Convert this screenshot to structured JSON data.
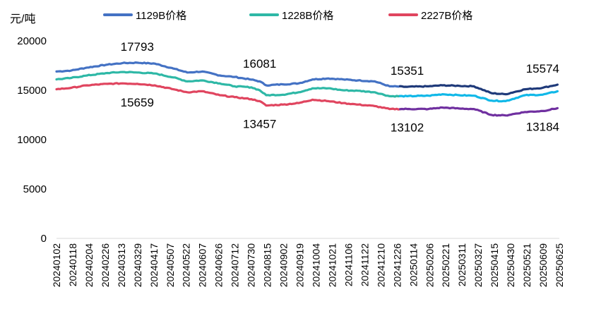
{
  "chart_data": {
    "type": "line",
    "unit_label": "元/吨",
    "ylim": [
      0,
      20000
    ],
    "y_ticks": [
      "0",
      "5000",
      "10000",
      "15000",
      "20000"
    ],
    "x_start": "20240102",
    "x_end": "20250627",
    "x_tick_labels": [
      "20240102",
      "20240118",
      "20240204",
      "20240226",
      "20240313",
      "20240329",
      "20240417",
      "20240507",
      "20240522",
      "20240607",
      "20240626",
      "20240712",
      "20240730",
      "20240815",
      "20240902",
      "20240919",
      "20241004",
      "20241021",
      "20241106",
      "20241122",
      "20241210",
      "20241226",
      "20250114",
      "20250206",
      "20250221",
      "20250311",
      "20250327",
      "20250415",
      "20250430",
      "20250521",
      "20250609",
      "20250625"
    ],
    "legend_position": "top",
    "grid": false,
    "series": [
      {
        "name": "1129B价格",
        "color": "#4472C4",
        "highlight_color": "#1F3A7A",
        "highlight_from": "20250108",
        "points": [
          [
            "20240102",
            16900
          ],
          [
            "20240118",
            17000
          ],
          [
            "20240204",
            17300
          ],
          [
            "20240226",
            17600
          ],
          [
            "20240313",
            17750
          ],
          [
            "20240329",
            17793
          ],
          [
            "20240417",
            17700
          ],
          [
            "20240507",
            17200
          ],
          [
            "20240522",
            16800
          ],
          [
            "20240607",
            16900
          ],
          [
            "20240626",
            16500
          ],
          [
            "20240712",
            16350
          ],
          [
            "20240730",
            16081
          ],
          [
            "20240808",
            15900
          ],
          [
            "20240815",
            15500
          ],
          [
            "20240902",
            15600
          ],
          [
            "20240919",
            15700
          ],
          [
            "20241004",
            16100
          ],
          [
            "20241021",
            16200
          ],
          [
            "20241106",
            16100
          ],
          [
            "20241122",
            16000
          ],
          [
            "20241210",
            15900
          ],
          [
            "20241226",
            15400
          ],
          [
            "20250114",
            15351
          ],
          [
            "20250206",
            15400
          ],
          [
            "20250221",
            15500
          ],
          [
            "20250311",
            15450
          ],
          [
            "20250327",
            15400
          ],
          [
            "20250415",
            14700
          ],
          [
            "20250430",
            14600
          ],
          [
            "20250521",
            15100
          ],
          [
            "20250609",
            15250
          ],
          [
            "20250625",
            15574
          ]
        ]
      },
      {
        "name": "1228B价格",
        "color": "#2EB8A6",
        "highlight_color": "#10B8E8",
        "highlight_from": "20250108",
        "points": [
          [
            "20240102",
            16100
          ],
          [
            "20240118",
            16250
          ],
          [
            "20240204",
            16500
          ],
          [
            "20240226",
            16750
          ],
          [
            "20240313",
            16850
          ],
          [
            "20240329",
            16800
          ],
          [
            "20240417",
            16700
          ],
          [
            "20240507",
            16300
          ],
          [
            "20240522",
            15900
          ],
          [
            "20240607",
            16000
          ],
          [
            "20240626",
            15700
          ],
          [
            "20240712",
            15400
          ],
          [
            "20240730",
            15300
          ],
          [
            "20240808",
            15000
          ],
          [
            "20240815",
            14500
          ],
          [
            "20240902",
            14550
          ],
          [
            "20240919",
            14800
          ],
          [
            "20241004",
            15200
          ],
          [
            "20241021",
            15200
          ],
          [
            "20241106",
            15000
          ],
          [
            "20241122",
            14950
          ],
          [
            "20241210",
            14800
          ],
          [
            "20241226",
            14400
          ],
          [
            "20250114",
            14400
          ],
          [
            "20250206",
            14450
          ],
          [
            "20250221",
            14600
          ],
          [
            "20250311",
            14500
          ],
          [
            "20250327",
            14450
          ],
          [
            "20250415",
            13950
          ],
          [
            "20250430",
            13900
          ],
          [
            "20250521",
            14500
          ],
          [
            "20250609",
            14550
          ],
          [
            "20250625",
            14900
          ]
        ]
      },
      {
        "name": "2227B价格",
        "color": "#E0455F",
        "highlight_color": "#7030A0",
        "highlight_from": "20250108",
        "points": [
          [
            "20240102",
            15100
          ],
          [
            "20240118",
            15250
          ],
          [
            "20240204",
            15500
          ],
          [
            "20240226",
            15650
          ],
          [
            "20240313",
            15700
          ],
          [
            "20240329",
            15659
          ],
          [
            "20240417",
            15500
          ],
          [
            "20240507",
            15100
          ],
          [
            "20240522",
            14800
          ],
          [
            "20240607",
            14900
          ],
          [
            "20240626",
            14500
          ],
          [
            "20240712",
            14300
          ],
          [
            "20240730",
            14100
          ],
          [
            "20240808",
            13900
          ],
          [
            "20240815",
            13457
          ],
          [
            "20240902",
            13550
          ],
          [
            "20240919",
            13700
          ],
          [
            "20241004",
            14050
          ],
          [
            "20241021",
            13900
          ],
          [
            "20241106",
            13700
          ],
          [
            "20241122",
            13550
          ],
          [
            "20241210",
            13400
          ],
          [
            "20241226",
            13100
          ],
          [
            "20250114",
            13102
          ],
          [
            "20250206",
            13100
          ],
          [
            "20250221",
            13250
          ],
          [
            "20250311",
            13150
          ],
          [
            "20250327",
            13100
          ],
          [
            "20250415",
            12500
          ],
          [
            "20250430",
            12450
          ],
          [
            "20250521",
            12800
          ],
          [
            "20250609",
            12900
          ],
          [
            "20250625",
            13184
          ]
        ]
      }
    ],
    "annotations": [
      {
        "text": "17793",
        "x": "20240329",
        "y": 17793,
        "anchor": "above"
      },
      {
        "text": "15659",
        "x": "20240329",
        "y": 15659,
        "anchor": "below"
      },
      {
        "text": "16081",
        "x": "20240808",
        "y": 16081,
        "anchor": "above"
      },
      {
        "text": "13457",
        "x": "20240808",
        "y": 13457,
        "anchor": "below"
      },
      {
        "text": "15351",
        "x": "20250114",
        "y": 15351,
        "anchor": "above"
      },
      {
        "text": "13102",
        "x": "20250114",
        "y": 13102,
        "anchor": "below"
      },
      {
        "text": "15574",
        "x": "20250609",
        "y": 15574,
        "anchor": "above"
      },
      {
        "text": "13184",
        "x": "20250609",
        "y": 13184,
        "anchor": "below"
      }
    ]
  }
}
